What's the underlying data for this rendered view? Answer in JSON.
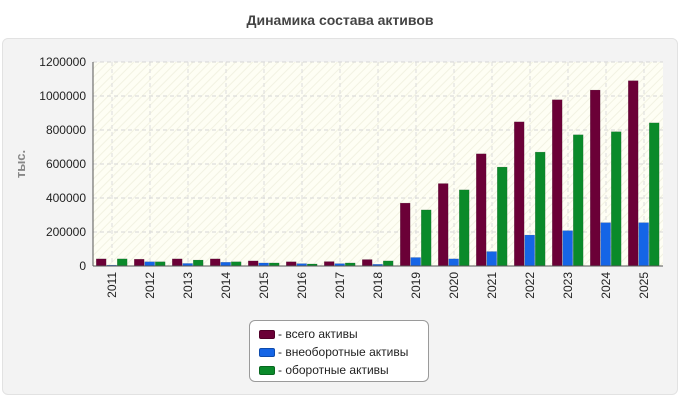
{
  "chart_data": {
    "type": "bar",
    "title": "Динамика состава активов",
    "ylabel": "тыс.",
    "xlabel": "",
    "ylim": [
      0,
      1200000
    ],
    "yticks": [
      0,
      200000,
      400000,
      600000,
      800000,
      1000000,
      1200000
    ],
    "grid": true,
    "legend_position": "bottom",
    "categories": [
      "2011",
      "2012",
      "2013",
      "2014",
      "2015",
      "2016",
      "2017",
      "2018",
      "2019",
      "2020",
      "2021",
      "2022",
      "2023",
      "2024",
      "2025"
    ],
    "series": [
      {
        "name": "- всего активы",
        "color": "#6b0037",
        "values": [
          42000,
          40000,
          42000,
          42000,
          30000,
          25000,
          26000,
          38000,
          370000,
          485000,
          660000,
          848000,
          978000,
          1035000,
          1090000
        ]
      },
      {
        "name": "- внеоборотные активы",
        "color": "#1565e6",
        "values": [
          5000,
          25000,
          15000,
          22000,
          18000,
          14000,
          14000,
          10000,
          50000,
          42000,
          85000,
          182000,
          208000,
          255000,
          255000
        ]
      },
      {
        "name": "- оборотные активы",
        "color": "#0a8a2a",
        "values": [
          42000,
          25000,
          35000,
          25000,
          18000,
          12000,
          18000,
          30000,
          330000,
          448000,
          582000,
          670000,
          772000,
          790000,
          842000
        ]
      }
    ]
  }
}
